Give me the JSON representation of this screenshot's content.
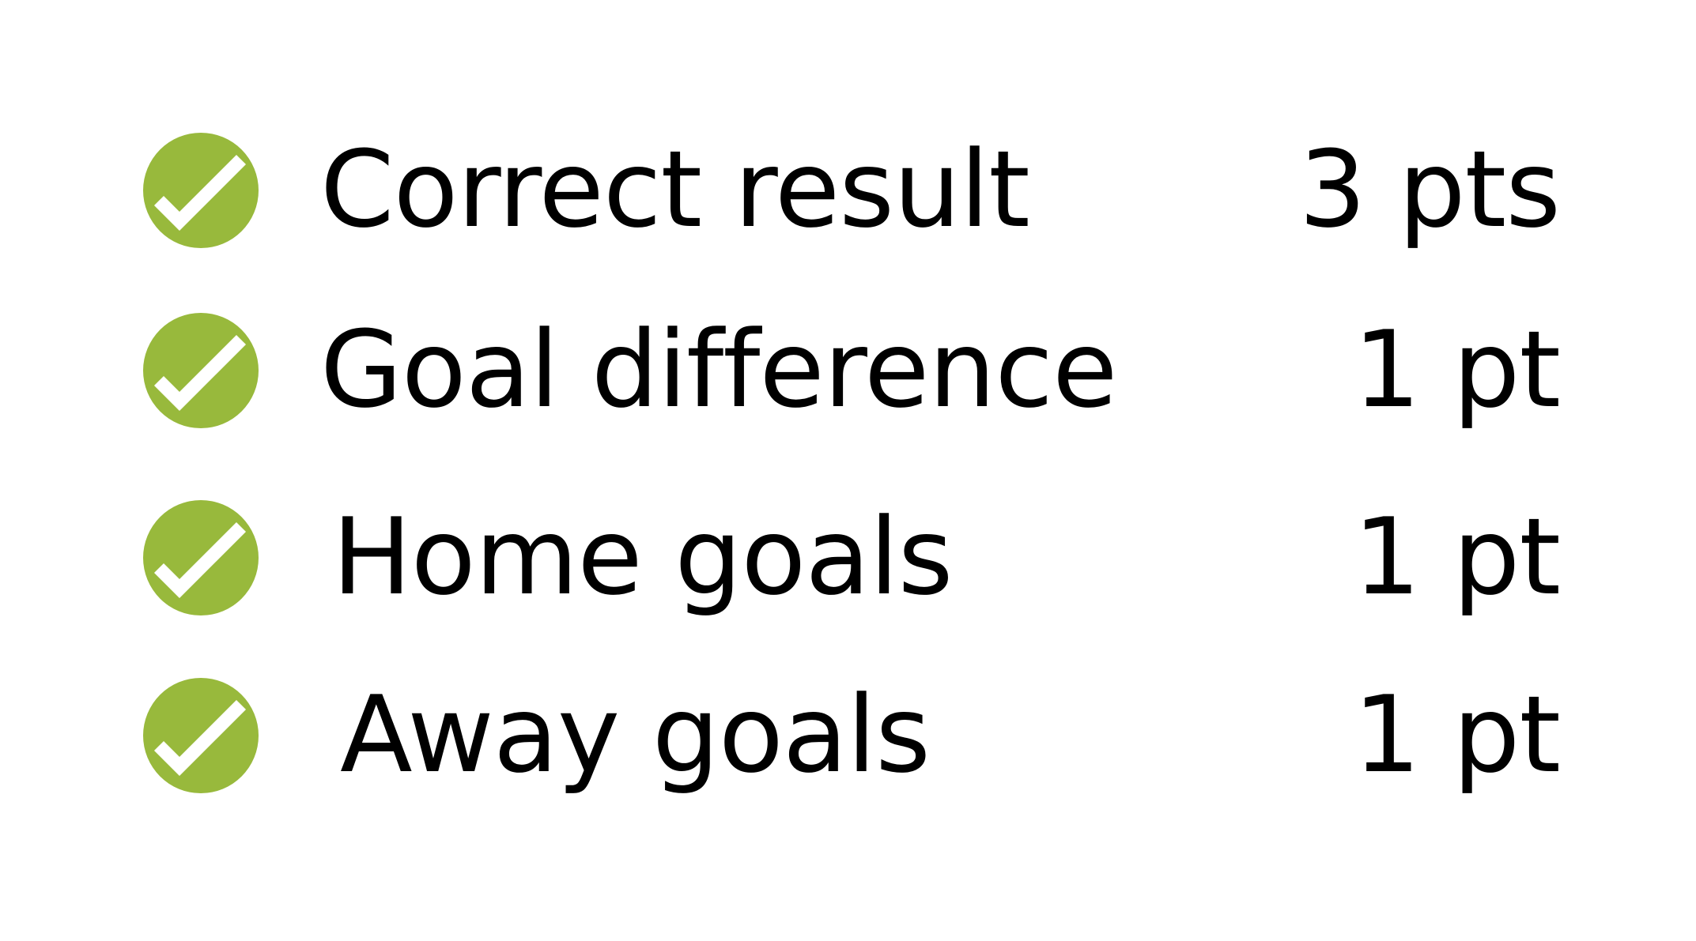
{
  "colors": {
    "check_circle": "#98b93c",
    "check_mark": "#ffffff",
    "text": "#000000",
    "background": "#ffffff"
  },
  "rules": [
    {
      "label": "Correct result",
      "points": "3 pts",
      "icon": "check-icon"
    },
    {
      "label": "Goal difference",
      "points": "1 pt",
      "icon": "check-icon"
    },
    {
      "label": "Home goals",
      "points": "1 pt",
      "icon": "check-icon"
    },
    {
      "label": "Away goals",
      "points": "1 pt",
      "icon": "check-icon"
    }
  ]
}
